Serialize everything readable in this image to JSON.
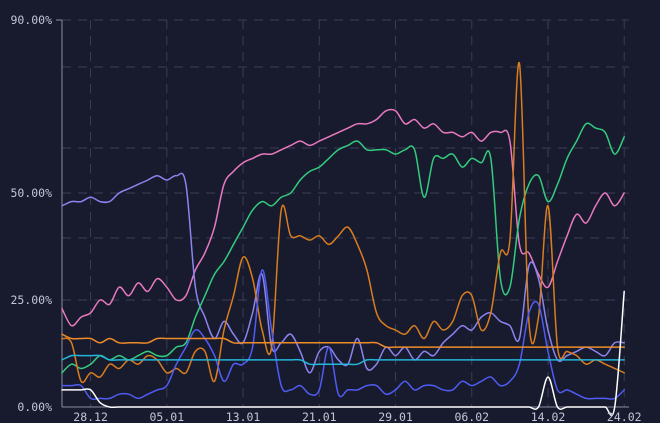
{
  "chart_data": {
    "type": "line",
    "title": "",
    "xlabel": "",
    "ylabel": "",
    "grid": true,
    "legend": "none",
    "y_scale": "piecewise",
    "y_ticks": [
      {
        "value": 0,
        "label": "0.00%"
      },
      {
        "value": 25,
        "label": "25.00%"
      },
      {
        "value": 50,
        "label": "50.00%"
      },
      {
        "value": 90,
        "label": "90.00%"
      }
    ],
    "ylim": [
      0,
      90
    ],
    "x_ticks": [
      {
        "day": 3,
        "label": "28.12"
      },
      {
        "day": 11,
        "label": "05.01"
      },
      {
        "day": 19,
        "label": "13.01"
      },
      {
        "day": 27,
        "label": "21.01"
      },
      {
        "day": 35,
        "label": "29.01"
      },
      {
        "day": 43,
        "label": "06.02"
      },
      {
        "day": 51,
        "label": "14.02"
      },
      {
        "day": 59,
        "label": "24.02"
      }
    ],
    "x": [
      0,
      1,
      2,
      3,
      4,
      5,
      6,
      7,
      8,
      9,
      10,
      11,
      12,
      13,
      14,
      15,
      16,
      17,
      18,
      19,
      20,
      21,
      22,
      23,
      24,
      25,
      26,
      27,
      28,
      29,
      30,
      31,
      32,
      33,
      34,
      35,
      36,
      37,
      38,
      39,
      40,
      41,
      42,
      43,
      44,
      45,
      46,
      47,
      48,
      49,
      50,
      51,
      52,
      53,
      54,
      55,
      56,
      57,
      58,
      59
    ],
    "series": [
      {
        "color": "#e879c0",
        "values": [
          23,
          19,
          21,
          22,
          25,
          24,
          28,
          26,
          29,
          27,
          30,
          28,
          25,
          26,
          32,
          36,
          42,
          52,
          55,
          57,
          58,
          59,
          59,
          60,
          61,
          62,
          61,
          62,
          63,
          64,
          65,
          66,
          66,
          67,
          69,
          69,
          66,
          67,
          65,
          66,
          64,
          64,
          63,
          64,
          62,
          64,
          64,
          62,
          38,
          36,
          31,
          28,
          34,
          40,
          45,
          43,
          47,
          50,
          47,
          50
        ]
      },
      {
        "color": "#8b84f0",
        "values": [
          47,
          48,
          48,
          49,
          48,
          48,
          50,
          51,
          52,
          53,
          54,
          53,
          54,
          52,
          28,
          21,
          16,
          20,
          17,
          15,
          22,
          31,
          14,
          15,
          17,
          13,
          8,
          13,
          14,
          11,
          10,
          16,
          9,
          10,
          14,
          12,
          14,
          11,
          13,
          12,
          15,
          17,
          19,
          18,
          21,
          22,
          20,
          19,
          16,
          33,
          30,
          18,
          11,
          12,
          13,
          14,
          13,
          12,
          15,
          15
        ]
      },
      {
        "color": "#33cc7e",
        "values": [
          8,
          10,
          9,
          10,
          12,
          11,
          12,
          11,
          12,
          13,
          12,
          12,
          14,
          15,
          21,
          26,
          31,
          34,
          38,
          42,
          46,
          48,
          47,
          49,
          50,
          53,
          55,
          56,
          58,
          60,
          61,
          62,
          60,
          60,
          60,
          59,
          60,
          60,
          49,
          58,
          58,
          59,
          56,
          58,
          57,
          58,
          30,
          28,
          44,
          52,
          54,
          48,
          52,
          58,
          62,
          66,
          65,
          64,
          59,
          63
        ]
      },
      {
        "color": "#d97d1f",
        "values": [
          16,
          15,
          6,
          8,
          7,
          10,
          9,
          11,
          10,
          12,
          11,
          8,
          9,
          8,
          13,
          13,
          6,
          18,
          26,
          35,
          30,
          18,
          14,
          46,
          40,
          40,
          39,
          40,
          38,
          40,
          42,
          38,
          32,
          22,
          19,
          18,
          17,
          19,
          16,
          20,
          18,
          20,
          26,
          26,
          18,
          22,
          36,
          39,
          80,
          20,
          21,
          47,
          14,
          13,
          12,
          10,
          11,
          10,
          9,
          8
        ]
      },
      {
        "color": "#4f5cf3",
        "values": [
          5,
          5,
          5,
          2,
          2,
          2,
          3,
          3,
          2,
          3,
          4,
          5,
          10,
          14,
          18,
          16,
          12,
          6,
          10,
          10,
          14,
          32,
          18,
          5,
          4,
          5,
          3,
          4,
          14,
          3,
          4,
          4,
          5,
          5,
          3,
          4,
          6,
          4,
          5,
          5,
          4,
          4,
          6,
          5,
          6,
          7,
          5,
          6,
          10,
          22,
          24,
          13,
          4,
          4,
          3,
          2,
          2,
          2,
          2,
          4
        ]
      },
      {
        "color": "#ef8c2a",
        "values": [
          17,
          16,
          16,
          16,
          15,
          16,
          15,
          15,
          15,
          15,
          16,
          16,
          16,
          16,
          16,
          16,
          16,
          16,
          15,
          15,
          15,
          15,
          15,
          15,
          15,
          15,
          15,
          15,
          15,
          15,
          15,
          15,
          15,
          15,
          14,
          14,
          14,
          14,
          14,
          14,
          14,
          14,
          14,
          14,
          14,
          14,
          14,
          14,
          14,
          14,
          14,
          14,
          14,
          14,
          14,
          14,
          14,
          14,
          14,
          14
        ]
      },
      {
        "color": "#22b7d9",
        "values": [
          11,
          12,
          12,
          12,
          12,
          11,
          11,
          11,
          11,
          11,
          11,
          11,
          11,
          11,
          11,
          11,
          11,
          11,
          11,
          11,
          11,
          11,
          11,
          11,
          11,
          11,
          10,
          10,
          10,
          10,
          10,
          10,
          11,
          11,
          11,
          11,
          11,
          11,
          11,
          11,
          11,
          11,
          11,
          11,
          11,
          11,
          11,
          11,
          11,
          11,
          11,
          11,
          11,
          11,
          11,
          11,
          11,
          11,
          11,
          11
        ]
      },
      {
        "color": "#ffffff",
        "values": [
          4,
          4,
          4,
          4,
          1,
          0,
          0,
          0,
          0,
          0,
          0,
          0,
          0,
          0,
          0,
          0,
          0,
          0,
          0,
          0,
          0,
          0,
          0,
          0,
          0,
          0,
          0,
          0,
          0,
          0,
          0,
          0,
          0,
          0,
          0,
          0,
          0,
          0,
          0,
          0,
          0,
          0,
          0,
          0,
          0,
          0,
          0,
          0,
          0,
          0,
          0,
          7,
          0,
          0,
          0,
          0,
          0,
          0,
          0,
          27
        ]
      }
    ]
  }
}
